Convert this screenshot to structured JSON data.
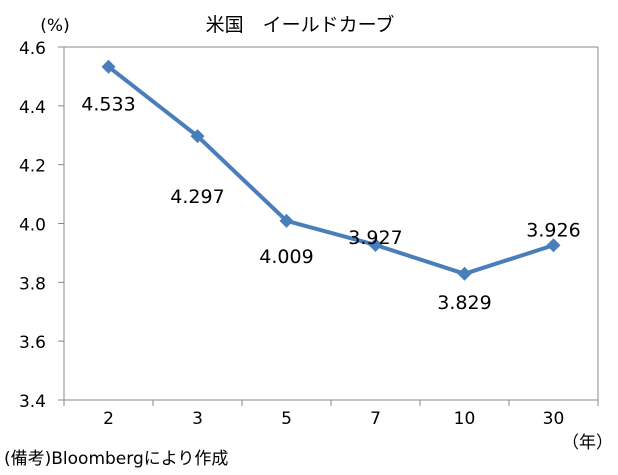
{
  "chart_data": {
    "type": "line",
    "title": "米国　イールドカーブ",
    "ylabel": "(%)",
    "xlabel": "（年）",
    "categories": [
      "2",
      "3",
      "5",
      "7",
      "10",
      "30"
    ],
    "series": [
      {
        "values": [
          4.533,
          4.297,
          4.009,
          3.927,
          3.829,
          3.926
        ]
      }
    ],
    "data_labels": [
      "4.533",
      "4.297",
      "4.009",
      "3.927",
      "3.829",
      "3.926"
    ],
    "ylim": [
      3.4,
      4.6
    ],
    "yticks": [
      "3.4",
      "3.6",
      "3.8",
      "4.0",
      "4.2",
      "4.4",
      "4.6"
    ],
    "grid": false,
    "legend": "none",
    "colors": {
      "series": "#4a7ebb",
      "axis": "#888888"
    }
  },
  "note": "(備考)Bloombergにより作成"
}
